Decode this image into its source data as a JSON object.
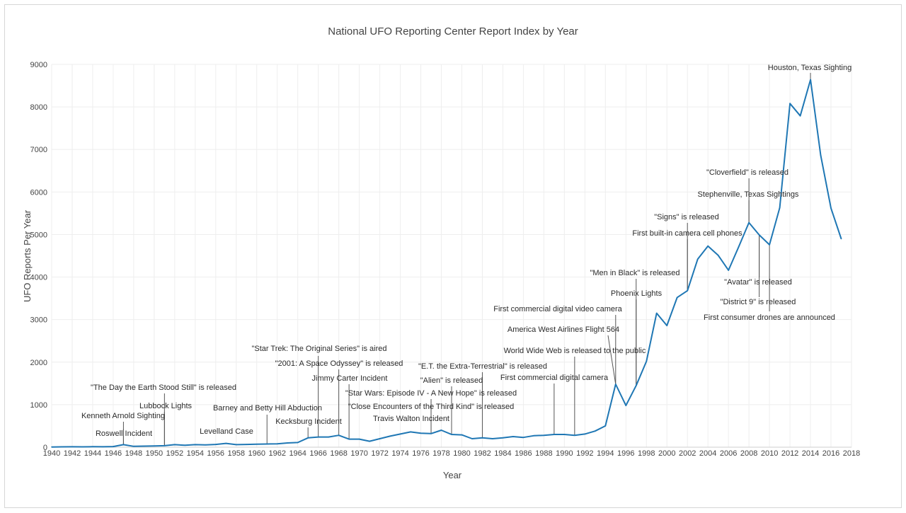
{
  "chart_data": {
    "type": "line",
    "title": "National UFO Reporting Center Report Index by Year",
    "xlabel": "Year",
    "ylabel": "UFO Reports Per Year",
    "xlim": [
      1940,
      2018
    ],
    "ylim": [
      0,
      9000
    ],
    "x_ticks": [
      1940,
      1942,
      1944,
      1946,
      1948,
      1950,
      1952,
      1954,
      1956,
      1958,
      1960,
      1962,
      1964,
      1966,
      1968,
      1970,
      1972,
      1974,
      1976,
      1978,
      1980,
      1982,
      1984,
      1986,
      1988,
      1990,
      1992,
      1994,
      1996,
      1998,
      2000,
      2002,
      2004,
      2006,
      2008,
      2010,
      2012,
      2014,
      2016,
      2018
    ],
    "y_ticks": [
      0,
      1000,
      2000,
      3000,
      4000,
      5000,
      6000,
      7000,
      8000,
      9000
    ],
    "grid": true,
    "series_color": "#1f77b4",
    "series": [
      {
        "x": [
          1940,
          1941,
          1942,
          1943,
          1944,
          1945,
          1946,
          1947,
          1948,
          1949,
          1950,
          1951,
          1952,
          1953,
          1954,
          1955,
          1956,
          1957,
          1958,
          1959,
          1960,
          1961,
          1962,
          1963,
          1964,
          1965,
          1966,
          1967,
          1968,
          1969,
          1970,
          1971,
          1972,
          1973,
          1974,
          1975,
          1976,
          1977,
          1978,
          1979,
          1980,
          1981,
          1982,
          1983,
          1984,
          1985,
          1986,
          1987,
          1988,
          1989,
          1990,
          1991,
          1992,
          1993,
          1994,
          1995,
          1996,
          1997,
          1998,
          1999,
          2000,
          2001,
          2002,
          2003,
          2004,
          2005,
          2006,
          2007,
          2008,
          2009,
          2010,
          2011,
          2012,
          2013,
          2014,
          2015,
          2016,
          2017
        ],
        "y": [
          5,
          8,
          10,
          8,
          12,
          10,
          15,
          60,
          20,
          25,
          30,
          35,
          60,
          45,
          60,
          55,
          65,
          90,
          60,
          65,
          70,
          75,
          80,
          100,
          110,
          220,
          240,
          240,
          280,
          190,
          190,
          140,
          200,
          260,
          310,
          360,
          330,
          320,
          400,
          300,
          290,
          200,
          220,
          200,
          220,
          250,
          230,
          270,
          280,
          300,
          300,
          280,
          310,
          380,
          500,
          1480,
          980,
          1450,
          2020,
          3150,
          2860,
          3520,
          3680,
          4420,
          4730,
          4510,
          4160,
          4710,
          5280,
          4990,
          4760,
          5630,
          8080,
          7790,
          8640,
          6860,
          5620,
          4900
        ]
      }
    ],
    "annotations": [
      {
        "text": "Roswell Incident",
        "x": 1947
      },
      {
        "text": "Kenneth Arnold Sighting",
        "x": 1947
      },
      {
        "text": "\"The Day the Earth Stood Still\" is released",
        "x": 1951
      },
      {
        "text": "Lubbock Lights",
        "x": 1951
      },
      {
        "text": "Levelland Case",
        "x": 1957
      },
      {
        "text": "Barney and Betty Hill Abduction",
        "x": 1961
      },
      {
        "text": "Kecksburg Incident",
        "x": 1965
      },
      {
        "text": "\"Star Trek: The Original Series\" is aired",
        "x": 1966
      },
      {
        "text": "\"2001: A Space Odyssey\" is released",
        "x": 1968
      },
      {
        "text": "Jimmy Carter Incident",
        "x": 1969
      },
      {
        "text": "Travis Walton Incident",
        "x": 1975
      },
      {
        "text": "\"Star Wars: Episode IV - A New Hope\" is released",
        "x": 1977
      },
      {
        "text": "\"Close Encounters of the Third Kind\" is released",
        "x": 1977
      },
      {
        "text": "\"Alien\" is released",
        "x": 1979
      },
      {
        "text": "\"E.T. the Extra-Terrestrial\" is released",
        "x": 1982
      },
      {
        "text": "First commercial digital camera",
        "x": 1989
      },
      {
        "text": "World Wide Web is released to the public",
        "x": 1991
      },
      {
        "text": "America West Airlines Flight 564",
        "x": 1995
      },
      {
        "text": "First commercial digital video camera",
        "x": 1995
      },
      {
        "text": "Phoenix Lights",
        "x": 1997
      },
      {
        "text": "\"Men in Black\" is released",
        "x": 1997
      },
      {
        "text": "First built-in camera cell phones",
        "x": 2002
      },
      {
        "text": "\"Signs\" is released",
        "x": 2002
      },
      {
        "text": "Stephenville, Texas Sightings",
        "x": 2008
      },
      {
        "text": "\"Cloverfield\" is released",
        "x": 2008
      },
      {
        "text": "\"Avatar\" is released",
        "x": 2009
      },
      {
        "text": "\"District 9\" is released",
        "x": 2009
      },
      {
        "text": "First consumer drones are announced",
        "x": 2010
      },
      {
        "text": "Houston, Texas Sighting",
        "x": 2014
      }
    ]
  }
}
